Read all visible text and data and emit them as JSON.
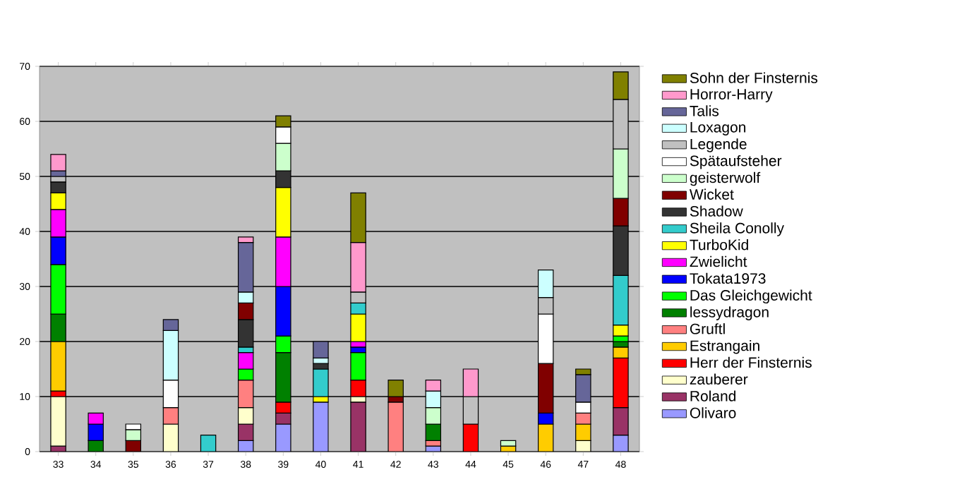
{
  "chart_data": {
    "type": "bar",
    "stacked": true,
    "categories": [
      "33",
      "34",
      "35",
      "36",
      "37",
      "38",
      "39",
      "40",
      "41",
      "42",
      "43",
      "44",
      "45",
      "46",
      "47",
      "48"
    ],
    "ylim": [
      0,
      70
    ],
    "yticks": [
      0,
      10,
      20,
      30,
      40,
      50,
      60,
      70
    ],
    "grid": "y",
    "legend": "right",
    "series": [
      {
        "name": "Olivaro",
        "color": "#9999ff",
        "values": [
          0,
          0,
          0,
          0,
          0,
          2,
          5,
          9,
          0,
          0,
          1,
          0,
          0,
          0,
          0,
          3
        ]
      },
      {
        "name": "Roland",
        "color": "#993366",
        "values": [
          1,
          0,
          0,
          0,
          0,
          3,
          2,
          0,
          9,
          0,
          0,
          0,
          0,
          0,
          0,
          5
        ]
      },
      {
        "name": "zauberer",
        "color": "#ffffcc",
        "values": [
          9,
          0,
          0,
          5,
          0,
          3,
          0,
          0,
          1,
          0,
          0,
          0,
          0,
          0,
          2,
          0
        ]
      },
      {
        "name": "Herr der Finsternis",
        "color": "#ff0000",
        "values": [
          1,
          0,
          0,
          0,
          0,
          0,
          2,
          0,
          3,
          0,
          0,
          5,
          0,
          0,
          0,
          9
        ]
      },
      {
        "name": "Estrangain",
        "color": "#ffcc00",
        "values": [
          9,
          0,
          0,
          0,
          0,
          0,
          0,
          0,
          0,
          0,
          0,
          0,
          1,
          5,
          3,
          2
        ]
      },
      {
        "name": "Gruftl",
        "color": "#ff8080",
        "values": [
          0,
          0,
          0,
          3,
          0,
          5,
          0,
          0,
          0,
          9,
          1,
          0,
          0,
          0,
          2,
          0
        ]
      },
      {
        "name": "lessydragon",
        "color": "#008000",
        "values": [
          5,
          2,
          0,
          0,
          0,
          0,
          9,
          0,
          0,
          0,
          3,
          0,
          0,
          0,
          0,
          1
        ]
      },
      {
        "name": "Das Gleichgewicht",
        "color": "#00ff00",
        "values": [
          9,
          0,
          0,
          0,
          0,
          2,
          3,
          0,
          5,
          0,
          0,
          0,
          0,
          0,
          0,
          1
        ]
      },
      {
        "name": "Tokata1973",
        "color": "#0000ff",
        "values": [
          5,
          3,
          0,
          0,
          0,
          0,
          9,
          0,
          1,
          0,
          0,
          0,
          0,
          2,
          0,
          0
        ]
      },
      {
        "name": "Zwielicht",
        "color": "#ff00ff",
        "values": [
          5,
          2,
          0,
          0,
          0,
          3,
          9,
          0,
          1,
          0,
          0,
          0,
          0,
          0,
          0,
          0
        ]
      },
      {
        "name": "TurboKid",
        "color": "#ffff00",
        "values": [
          3,
          0,
          0,
          0,
          0,
          0,
          9,
          1,
          5,
          0,
          0,
          0,
          0,
          0,
          0,
          2
        ]
      },
      {
        "name": "Sheila Conolly",
        "color": "#33cccc",
        "values": [
          0,
          0,
          0,
          0,
          3,
          1,
          0,
          5,
          2,
          0,
          0,
          0,
          0,
          0,
          0,
          9
        ]
      },
      {
        "name": "Shadow",
        "color": "#333333",
        "values": [
          2,
          0,
          0,
          0,
          0,
          5,
          3,
          1,
          0,
          0,
          0,
          0,
          0,
          0,
          0,
          9
        ]
      },
      {
        "name": "Wicket",
        "color": "#800000",
        "values": [
          0,
          0,
          2,
          0,
          0,
          3,
          0,
          0,
          0,
          1,
          0,
          0,
          0,
          9,
          0,
          5
        ]
      },
      {
        "name": "geisterwolf",
        "color": "#ccffcc",
        "values": [
          0,
          0,
          2,
          0,
          0,
          0,
          5,
          0,
          0,
          0,
          3,
          0,
          1,
          0,
          0,
          9
        ]
      },
      {
        "name": "Spätaufsteher",
        "color": "#ffffff",
        "values": [
          0,
          0,
          1,
          5,
          0,
          0,
          3,
          0,
          0,
          0,
          0,
          0,
          0,
          9,
          2,
          0
        ]
      },
      {
        "name": "Legende",
        "color": "#c0c0c0",
        "values": [
          1,
          0,
          0,
          0,
          0,
          0,
          0,
          0,
          2,
          0,
          0,
          5,
          0,
          3,
          0,
          9
        ]
      },
      {
        "name": "Loxagon",
        "color": "#ccffff",
        "values": [
          0,
          0,
          0,
          9,
          0,
          2,
          0,
          1,
          0,
          0,
          3,
          0,
          0,
          5,
          0,
          0
        ]
      },
      {
        "name": "Talis",
        "color": "#666699",
        "values": [
          1,
          0,
          0,
          2,
          0,
          9,
          0,
          3,
          0,
          0,
          0,
          0,
          0,
          0,
          5,
          0
        ]
      },
      {
        "name": "Horror-Harry",
        "color": "#ff99cc",
        "values": [
          3,
          0,
          0,
          0,
          0,
          1,
          0,
          0,
          9,
          0,
          2,
          5,
          0,
          0,
          0,
          0
        ]
      },
      {
        "name": "Sohn der Finsternis",
        "color": "#808000",
        "values": [
          0,
          0,
          0,
          0,
          0,
          0,
          2,
          0,
          9,
          3,
          0,
          0,
          0,
          0,
          1,
          5
        ]
      }
    ]
  }
}
